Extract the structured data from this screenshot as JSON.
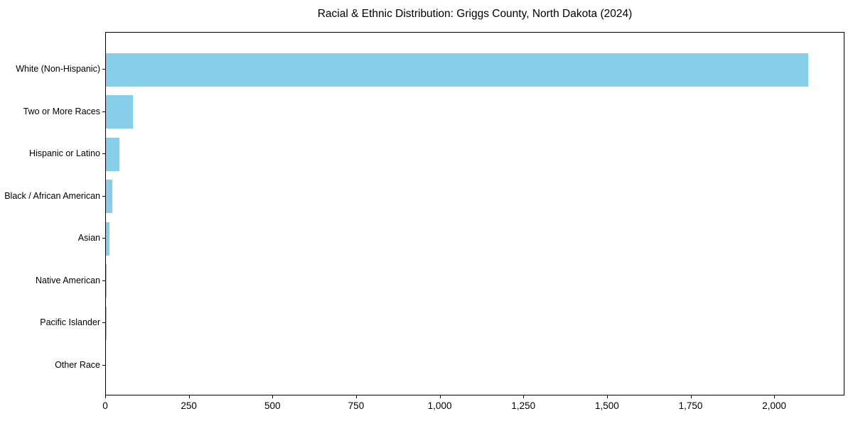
{
  "chart_data": {
    "type": "bar",
    "orientation": "horizontal",
    "title": "Racial & Ethnic Distribution: Griggs County, North Dakota (2024)",
    "categories": [
      "White (Non-Hispanic)",
      "Two or More Races",
      "Hispanic or Latino",
      "Black / African American",
      "Asian",
      "Native American",
      "Pacific Islander",
      "Other Race"
    ],
    "values": [
      2100,
      80,
      40,
      20,
      10,
      3,
      1,
      0
    ],
    "xlabel": "",
    "ylabel": "",
    "xlim": [
      0,
      2210
    ],
    "x_ticks": [
      0,
      250,
      500,
      750,
      1000,
      1250,
      1500,
      1750,
      2000
    ],
    "x_tick_labels": [
      "0",
      "250",
      "500",
      "750",
      "1,000",
      "1,250",
      "1,500",
      "1,750",
      "2,000"
    ],
    "bar_color": "#87CEEB",
    "axis_color": "#000000",
    "grid": "off",
    "legend": "none"
  }
}
